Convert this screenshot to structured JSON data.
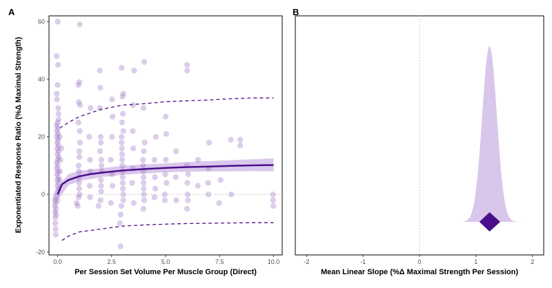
{
  "figure": {
    "panel_a_label": "A",
    "panel_b_label": "B"
  },
  "colors": {
    "accent": "#4b0f8a",
    "points": "#9b6fc4",
    "band": "#cdb4e6",
    "density": "#d8c7ea",
    "frame": "#000000",
    "zero_line": "#cccccc"
  },
  "chart_data": [
    {
      "type": "scatter",
      "panel": "A",
      "xlabel": "Per Session Set Volume Per Muscle Group (Direct)",
      "ylabel": "Exponentiated Response Ratio (%Δ Maximal Strength)",
      "xlim": [
        -0.4,
        10.4
      ],
      "ylim": [
        -21,
        62
      ],
      "xticks": [
        0.0,
        2.5,
        5.0,
        7.5,
        10.0
      ],
      "xtick_labels": [
        "0.0",
        "2.5",
        "5.0",
        "7.5",
        "10.0"
      ],
      "yticks": [
        -20,
        0,
        20,
        40,
        60
      ],
      "ytick_labels": [
        "-20",
        "0",
        "20",
        "40",
        "60"
      ],
      "grid": false,
      "reference_line_y": 0,
      "points": [
        [
          0,
          60
        ],
        [
          0,
          48
        ],
        [
          0,
          45
        ],
        [
          0,
          38
        ],
        [
          0,
          35
        ],
        [
          0,
          33
        ],
        [
          0,
          30
        ],
        [
          0,
          28
        ],
        [
          0,
          26
        ],
        [
          0,
          25
        ],
        [
          0,
          24
        ],
        [
          0,
          23
        ],
        [
          0,
          22
        ],
        [
          0,
          21
        ],
        [
          0,
          20
        ],
        [
          0,
          19
        ],
        [
          0,
          18
        ],
        [
          0,
          17
        ],
        [
          0,
          16
        ],
        [
          0,
          15
        ],
        [
          0,
          14
        ],
        [
          0,
          13
        ],
        [
          0,
          12
        ],
        [
          0,
          11
        ],
        [
          0,
          10
        ],
        [
          0,
          9
        ],
        [
          0,
          8
        ],
        [
          0,
          7
        ],
        [
          0,
          6
        ],
        [
          0,
          5
        ],
        [
          0,
          4
        ],
        [
          0,
          3
        ],
        [
          0,
          2
        ],
        [
          0,
          1
        ],
        [
          0,
          0
        ],
        [
          0,
          -1
        ],
        [
          0,
          -2
        ],
        [
          0,
          -3
        ],
        [
          0,
          -4
        ],
        [
          0,
          -5
        ],
        [
          0,
          -6
        ],
        [
          0,
          -7
        ],
        [
          0,
          -8
        ],
        [
          0,
          -10
        ],
        [
          0,
          -12
        ],
        [
          0,
          -14
        ],
        [
          0.1,
          20
        ],
        [
          0.1,
          12
        ],
        [
          0.1,
          5
        ],
        [
          0.1,
          -2
        ],
        [
          0.15,
          16
        ],
        [
          0.15,
          8
        ],
        [
          1,
          59
        ],
        [
          1,
          39
        ],
        [
          1,
          38
        ],
        [
          1,
          32
        ],
        [
          1,
          31
        ],
        [
          1,
          25
        ],
        [
          1,
          22
        ],
        [
          1,
          18
        ],
        [
          1,
          15
        ],
        [
          1,
          13
        ],
        [
          1,
          10
        ],
        [
          1,
          8
        ],
        [
          1,
          6
        ],
        [
          1,
          4
        ],
        [
          1,
          2
        ],
        [
          1,
          0
        ],
        [
          1,
          -1
        ],
        [
          1,
          -3
        ],
        [
          1,
          -4
        ],
        [
          1.5,
          30
        ],
        [
          1.5,
          20
        ],
        [
          1.5,
          12
        ],
        [
          1.5,
          8
        ],
        [
          1.5,
          3
        ],
        [
          1.5,
          -1
        ],
        [
          2,
          43
        ],
        [
          2,
          37
        ],
        [
          2,
          30
        ],
        [
          2,
          20
        ],
        [
          2,
          18
        ],
        [
          2,
          15
        ],
        [
          2,
          12
        ],
        [
          2,
          10
        ],
        [
          2,
          8
        ],
        [
          2,
          5
        ],
        [
          2,
          3
        ],
        [
          2,
          1
        ],
        [
          2,
          -2
        ],
        [
          2,
          -4
        ],
        [
          2.5,
          33
        ],
        [
          2.5,
          27
        ],
        [
          2.5,
          20
        ],
        [
          2.5,
          12
        ],
        [
          2.5,
          7
        ],
        [
          2.5,
          3
        ],
        [
          2.5,
          -3
        ],
        [
          3,
          44
        ],
        [
          3,
          35
        ],
        [
          3,
          34
        ],
        [
          3,
          28
        ],
        [
          3,
          25
        ],
        [
          3,
          22
        ],
        [
          3,
          20
        ],
        [
          3,
          18
        ],
        [
          3,
          16
        ],
        [
          3,
          14
        ],
        [
          3,
          12
        ],
        [
          3,
          10
        ],
        [
          3,
          8
        ],
        [
          3,
          6
        ],
        [
          3,
          4
        ],
        [
          3,
          2
        ],
        [
          3,
          0
        ],
        [
          3,
          -2
        ],
        [
          3,
          -4
        ],
        [
          3,
          -7
        ],
        [
          3,
          -10
        ],
        [
          3,
          -18
        ],
        [
          3.5,
          43
        ],
        [
          3.5,
          31
        ],
        [
          3.5,
          22
        ],
        [
          3.5,
          16
        ],
        [
          3.5,
          9
        ],
        [
          3.5,
          4
        ],
        [
          3.5,
          -3
        ],
        [
          4,
          46
        ],
        [
          4,
          30
        ],
        [
          4,
          18
        ],
        [
          4,
          15
        ],
        [
          4,
          12
        ],
        [
          4,
          10
        ],
        [
          4,
          8
        ],
        [
          4,
          6
        ],
        [
          4,
          4
        ],
        [
          4,
          2
        ],
        [
          4,
          0
        ],
        [
          4,
          -2
        ],
        [
          4,
          -5
        ],
        [
          4.5,
          20
        ],
        [
          4.5,
          12
        ],
        [
          4.5,
          6
        ],
        [
          4.5,
          2
        ],
        [
          4.5,
          -1
        ],
        [
          5,
          27
        ],
        [
          5,
          21
        ],
        [
          5,
          12
        ],
        [
          5,
          7
        ],
        [
          5,
          4
        ],
        [
          5,
          0
        ],
        [
          5,
          -2
        ],
        [
          5.5,
          15
        ],
        [
          5.5,
          6
        ],
        [
          5.5,
          -2
        ],
        [
          6,
          45
        ],
        [
          6,
          43
        ],
        [
          6,
          10
        ],
        [
          6,
          7
        ],
        [
          6,
          4
        ],
        [
          6,
          0
        ],
        [
          6,
          -2
        ],
        [
          6,
          -5
        ],
        [
          6.5,
          12
        ],
        [
          6.5,
          3
        ],
        [
          7,
          18
        ],
        [
          7,
          9
        ],
        [
          7,
          4
        ],
        [
          7,
          0
        ],
        [
          7.5,
          5
        ],
        [
          7.5,
          -3
        ],
        [
          8,
          19
        ],
        [
          8,
          0
        ],
        [
          8.5,
          19
        ],
        [
          8.5,
          17
        ],
        [
          10,
          0
        ],
        [
          10,
          -2
        ],
        [
          10,
          -4
        ]
      ],
      "fit_line": [
        [
          0,
          0
        ],
        [
          0.2,
          3.5
        ],
        [
          0.5,
          5
        ],
        [
          1,
          6.3
        ],
        [
          1.5,
          7
        ],
        [
          2,
          7.5
        ],
        [
          3,
          8.3
        ],
        [
          4,
          8.8
        ],
        [
          5,
          9.2
        ],
        [
          6,
          9.5
        ],
        [
          7,
          9.7
        ],
        [
          8,
          9.9
        ],
        [
          9,
          10.1
        ],
        [
          10,
          10.2
        ]
      ],
      "fit_band_upper": [
        [
          0,
          2.5
        ],
        [
          0.5,
          7
        ],
        [
          1,
          8.2
        ],
        [
          2,
          9.1
        ],
        [
          3,
          9.9
        ],
        [
          4,
          10.4
        ],
        [
          5,
          10.8
        ],
        [
          6,
          11.3
        ],
        [
          7,
          11.6
        ],
        [
          8,
          11.9
        ],
        [
          9,
          12.2
        ],
        [
          10,
          12.5
        ]
      ],
      "fit_band_lower": [
        [
          0,
          -2
        ],
        [
          0.5,
          3.2
        ],
        [
          1,
          4.6
        ],
        [
          2,
          6.0
        ],
        [
          3,
          6.8
        ],
        [
          4,
          7.3
        ],
        [
          5,
          7.7
        ],
        [
          6,
          7.9
        ],
        [
          7,
          8.0
        ],
        [
          8,
          8.0
        ],
        [
          9,
          8.1
        ],
        [
          10,
          8.0
        ]
      ],
      "prediction_upper": [
        [
          0.1,
          23
        ],
        [
          0.5,
          25
        ],
        [
          1,
          27
        ],
        [
          2,
          29.5
        ],
        [
          3,
          31
        ],
        [
          4,
          31.5
        ],
        [
          5,
          32.2
        ],
        [
          6,
          32.5
        ],
        [
          7,
          32.8
        ],
        [
          8,
          33.2
        ],
        [
          9,
          33.5
        ],
        [
          10,
          33.5
        ]
      ],
      "prediction_lower": [
        [
          0.2,
          -16
        ],
        [
          0.5,
          -14.5
        ],
        [
          1,
          -13
        ],
        [
          2,
          -12
        ],
        [
          3,
          -11
        ],
        [
          4,
          -10.6
        ],
        [
          5,
          -10.3
        ],
        [
          6,
          -10.1
        ],
        [
          7,
          -10
        ],
        [
          8,
          -9.9
        ],
        [
          9,
          -9.8
        ],
        [
          10,
          -9.8
        ]
      ]
    },
    {
      "type": "area",
      "panel": "B",
      "xlabel": "Mean Linear Slope (%Δ Maximal Strength Per Session)",
      "ylabel": "",
      "xlim": [
        -2.2,
        2.2
      ],
      "xticks": [
        -2,
        -1,
        0,
        1,
        2
      ],
      "xtick_labels": [
        "-2",
        "-1",
        "0",
        "1",
        "2"
      ],
      "grid": false,
      "reference_line_x": 0,
      "density_center": 1.24,
      "density_sd": 0.13,
      "point_estimate": 1.24,
      "interval": [
        1.06,
        1.43
      ]
    }
  ]
}
